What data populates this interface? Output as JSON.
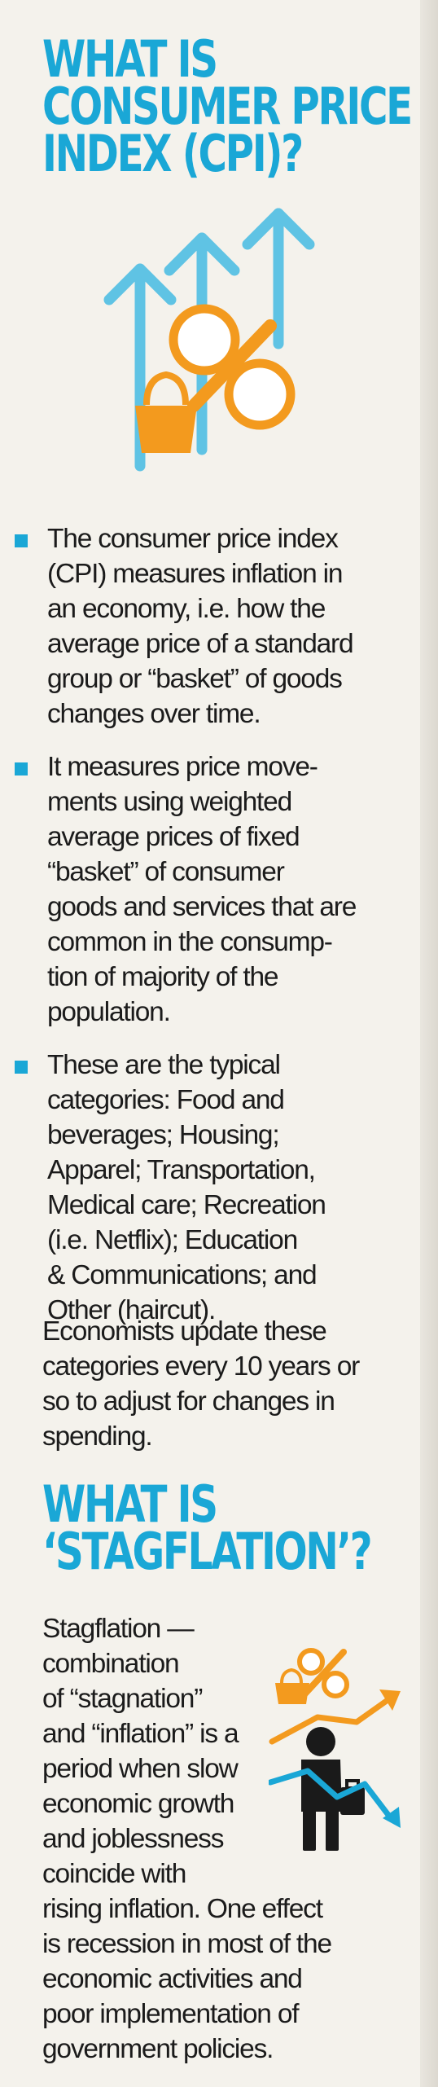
{
  "heading1": {
    "lines": [
      "WHAT IS",
      "CONSUMER PRICE",
      "INDEX (CPI)?"
    ]
  },
  "bullets": [
    {
      "lines": [
        "The consumer price index",
        "(CPI) measures inflation in",
        "an economy, i.e. how the",
        "average price of a standard",
        "group or “basket” of goods",
        "changes over time."
      ]
    },
    {
      "lines": [
        "It measures price move-",
        "ments using weighted",
        "average prices of fixed",
        "“basket” of consumer",
        "goods and services that are",
        "common in the consump-",
        "tion of majority of the",
        "population."
      ]
    },
    {
      "lines": [
        "These are the typical",
        "categories: Food and",
        "beverages; Housing;",
        "Apparel; Transportation,",
        "Medical care; Recreation",
        "(i.e. Netflix); Education",
        "& Communications; and",
        "Other (haircut)."
      ]
    }
  ],
  "note": {
    "lines": [
      "Economists update these",
      "categories every 10 years or",
      "so to adjust for changes in",
      "spending."
    ]
  },
  "heading2": {
    "lines": [
      "WHAT IS",
      "‘STAGFLATION’?"
    ]
  },
  "stagflation": {
    "lines": [
      "Stagflation —",
      "combination",
      "of “stagnation”",
      "and “inflation” is a",
      "period when slow",
      "economic growth",
      "and joblessness",
      "coincide with",
      "rising inflation. One effect",
      "is recession in most of the",
      "economic activities and",
      "poor implementation of",
      "government policies."
    ]
  },
  "illustrations": {
    "top": "rising-arrows-percent-basket-icon",
    "side": "worker-with-rising-and-falling-trend-icon"
  },
  "colors": {
    "accent": "#1aa7d6",
    "orange": "#f39a1e",
    "text": "#1b1b1b",
    "figure": "#1a1a1a",
    "background": "#f4f2ec"
  }
}
